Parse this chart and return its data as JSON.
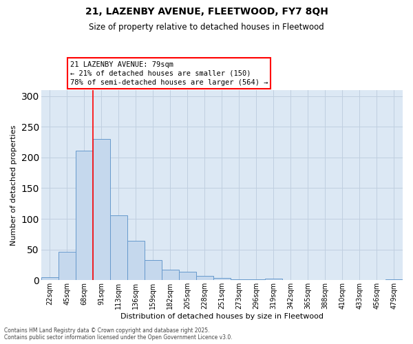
{
  "title": "21, LAZENBY AVENUE, FLEETWOOD, FY7 8QH",
  "subtitle": "Size of property relative to detached houses in Fleetwood",
  "xlabel": "Distribution of detached houses by size in Fleetwood",
  "ylabel": "Number of detached properties",
  "categories": [
    "22sqm",
    "45sqm",
    "68sqm",
    "91sqm",
    "113sqm",
    "136sqm",
    "159sqm",
    "182sqm",
    "205sqm",
    "228sqm",
    "251sqm",
    "273sqm",
    "296sqm",
    "319sqm",
    "342sqm",
    "365sqm",
    "388sqm",
    "410sqm",
    "433sqm",
    "456sqm",
    "479sqm"
  ],
  "values": [
    5,
    46,
    211,
    230,
    106,
    64,
    33,
    17,
    14,
    7,
    4,
    1,
    1,
    3,
    0,
    0,
    0,
    0,
    0,
    0,
    2
  ],
  "bar_color": "#c5d8ed",
  "bar_edge_color": "#6699cc",
  "ylim": [
    0,
    310
  ],
  "yticks": [
    0,
    50,
    100,
    150,
    200,
    250,
    300
  ],
  "grid_color": "#c0cfe0",
  "bg_color": "#dce8f4",
  "annotation_text": "21 LAZENBY AVENUE: 79sqm\n← 21% of detached houses are smaller (150)\n78% of semi-detached houses are larger (564) →",
  "redline_x": 2.5,
  "footer_line1": "Contains HM Land Registry data © Crown copyright and database right 2025.",
  "footer_line2": "Contains public sector information licensed under the Open Government Licence v3.0."
}
